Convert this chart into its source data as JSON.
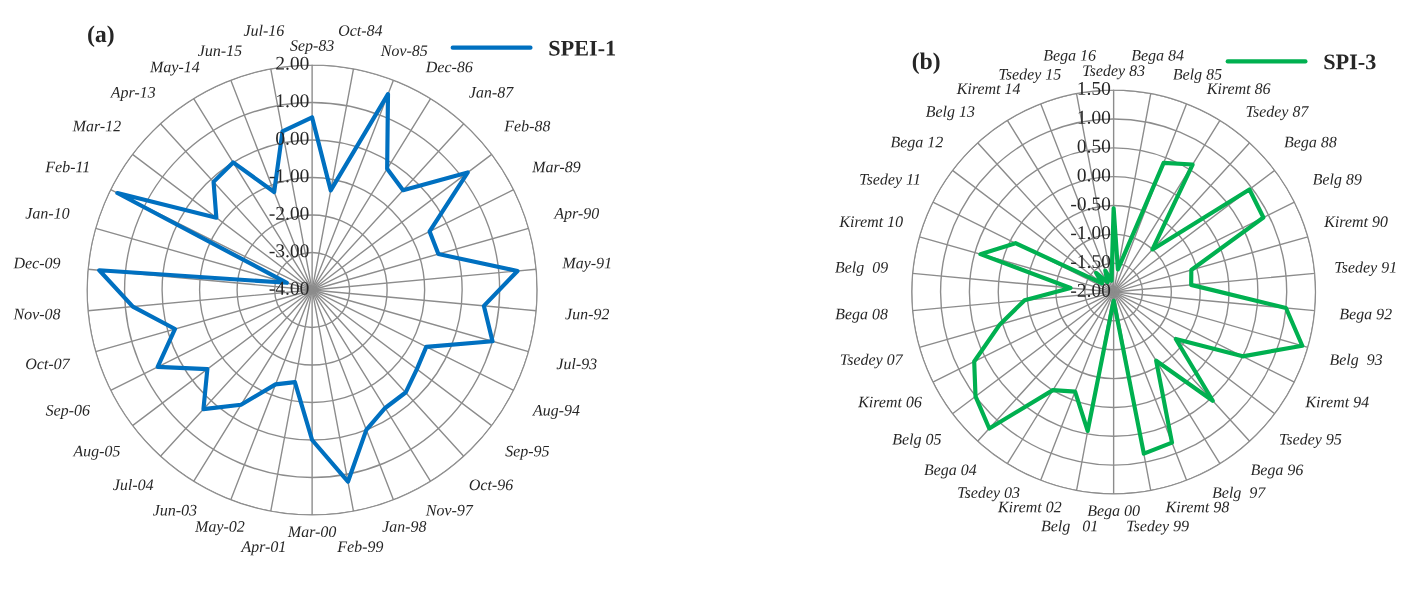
{
  "chart_data": [
    {
      "type": "radar",
      "title": "(a)",
      "legend": "top right",
      "grid": true,
      "categories": [
        "Sep-83",
        "Oct-84",
        "Nov-85",
        "Dec-86",
        "Jan-87",
        "Feb-88",
        "Mar-89",
        "Apr-90",
        "May-91",
        "Jun-92",
        "Jul-93",
        "Aug-94",
        "Sep-95",
        "Oct-96",
        "Nov-97",
        "Jan-98",
        "Feb-99",
        "Mar-00",
        "Apr-01",
        "May-02",
        "Jun-03",
        "Jul-04",
        "Aug-05",
        "Sep-06",
        "Oct-07",
        "Nov-08",
        "Dec-09",
        "Jan-10",
        "Feb-11",
        "Mar-12",
        "Apr-13",
        "May-14",
        "Jun-15",
        "Jul-16"
      ],
      "ylim": [
        -4,
        2
      ],
      "yticks": [
        {
          "value": -4,
          "label": "-4.00"
        },
        {
          "value": -3,
          "label": "-3.00"
        },
        {
          "value": -2,
          "label": "-2.00"
        },
        {
          "value": -1,
          "label": "-1.00"
        },
        {
          "value": 0,
          "label": "0.00"
        },
        {
          "value": 1,
          "label": "1.00"
        },
        {
          "value": 2,
          "label": "2.00"
        }
      ],
      "series": [
        {
          "name": "SPEI-1",
          "color": "#0070c0",
          "values": [
            0.6,
            -1.3,
            1.6,
            -0.2,
            -0.4,
            1.2,
            -0.5,
            -0.5,
            1.5,
            0.6,
            1.0,
            -0.6,
            -0.5,
            -0.3,
            -0.3,
            0.0,
            1.2,
            0.0,
            -1.5,
            -1.3,
            -0.4,
            0.3,
            -0.5,
            0.6,
            -0.2,
            0.8,
            1.7,
            -3.3,
            1.8,
            -0.8,
            -0.1,
            0.0,
            -1.2,
            0.3
          ]
        }
      ]
    },
    {
      "type": "radar",
      "title": "(b)",
      "legend": "top right",
      "grid": true,
      "categories": [
        "Tsedey 83",
        "Bega 84",
        "Belg 85",
        "Kiremt 86",
        "Tsedey 87",
        "Bega 88",
        "Belg 89",
        "Kiremt 90",
        "Tsedey 91",
        "Bega 92",
        "Belg  93",
        "Kiremt 94",
        "Tsedey 95",
        "Bega 96",
        "Belg  97",
        "Kiremt 98",
        "Tsedey 99",
        "Bega 00",
        "Belg   01",
        "Kiremt 02",
        "Tsedey 03",
        "Bega 04",
        "Belg 05",
        "Kiremt 06",
        "Tsedey 07",
        "Bega 08",
        "Belg  09",
        "Kiremt 10",
        "Tsedey 11",
        "Bega 12",
        "Belg 13",
        "Kiremt 14",
        "Tsedey 15",
        "Bega 16"
      ],
      "ylim": [
        -2,
        1.5
      ],
      "yticks": [
        {
          "value": -2,
          "label": "-2.00"
        },
        {
          "value": -1.5,
          "label": "-1.50"
        },
        {
          "value": -1,
          "label": "-1.00"
        },
        {
          "value": -0.5,
          "label": "-0.50"
        },
        {
          "value": 0,
          "label": "0.00"
        },
        {
          "value": 0.5,
          "label": "0.50"
        },
        {
          "value": 1,
          "label": "1.00"
        },
        {
          "value": 1.5,
          "label": "1.50"
        }
      ],
      "series": [
        {
          "name": "SPI-3",
          "color": "#00b050",
          "values": [
            -0.55,
            -1.6,
            0.4,
            0.6,
            -1.0,
            0.95,
            0.9,
            -0.6,
            -0.65,
            1.0,
            1.4,
            0.5,
            -0.65,
            0.55,
            -0.6,
            0.8,
            0.85,
            -1.85,
            0.45,
            -0.15,
            0.0,
            1.2,
            1.0,
            0.7,
            0.05,
            -0.45,
            -1.25,
            0.4,
            -0.1,
            -1.75,
            -1.55,
            -1.8,
            -1.6,
            -1.8
          ]
        }
      ]
    }
  ]
}
